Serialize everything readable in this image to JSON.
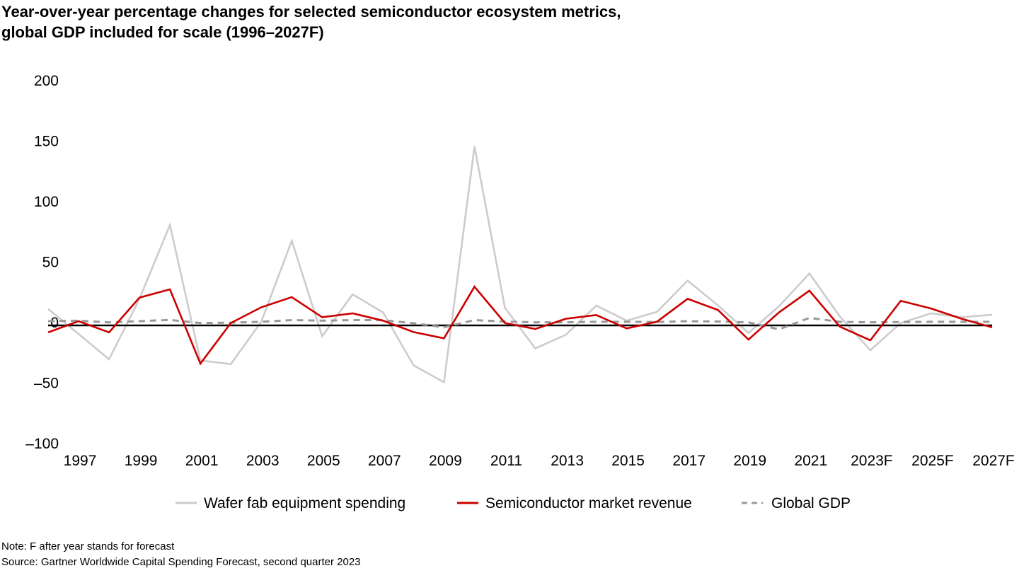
{
  "chart_data": {
    "type": "line",
    "title": "Year-over-year percentage changes for selected semiconductor ecosystem metrics, global GDP included for scale (1996–2027F)",
    "title_lines": [
      "Year-over-year percentage changes for selected semiconductor ecosystem metrics,",
      "global GDP included for scale (1996–2027F)"
    ],
    "xlabel": "",
    "ylabel": "",
    "ylim": [
      -100,
      200
    ],
    "yticks": [
      200,
      150,
      100,
      50,
      0,
      -50,
      -100
    ],
    "ytick_labels": [
      "200",
      "150",
      "100",
      "50",
      "0",
      "–50",
      "–100"
    ],
    "x": [
      "1996",
      "1997",
      "1998",
      "1999",
      "2000",
      "2001",
      "2002",
      "2003",
      "2004",
      "2005",
      "2006",
      "2007",
      "2008",
      "2009",
      "2010",
      "2011",
      "2012",
      "2013",
      "2014",
      "2015",
      "2016",
      "2017",
      "2018",
      "2019",
      "2020",
      "2021",
      "2022",
      "2023F",
      "2024F",
      "2025F",
      "2026F",
      "2027F"
    ],
    "xtick_labels": [
      "1997",
      "1999",
      "2001",
      "2003",
      "2005",
      "2007",
      "2009",
      "2011",
      "2013",
      "2015",
      "2017",
      "2019",
      "2021",
      "2023F",
      "2025F",
      "2027F"
    ],
    "grid": false,
    "zero_line": true,
    "legend_position": "bottom",
    "series": [
      {
        "name": "Wafer fab equipment spending",
        "color": "#cccccc",
        "style": "solid",
        "values": [
          13.6,
          -7,
          -28,
          22,
          83,
          -29,
          -32,
          3,
          70,
          -9,
          25.7,
          10.7,
          -33,
          -47,
          148,
          14.6,
          -19,
          -7.8,
          16.4,
          3.9,
          11.3,
          37,
          16.5,
          -6.2,
          15.8,
          43,
          7.4,
          -20.5,
          2,
          10,
          6.8,
          8.8
        ]
      },
      {
        "name": "Semiconductor market revenue",
        "color": "#cc0000",
        "style": "solid",
        "values": [
          -5.8,
          3.5,
          -5.8,
          23,
          29.8,
          -31.6,
          2,
          15,
          23.4,
          6.8,
          10,
          3.9,
          -5.5,
          -10.7,
          32,
          2,
          -2.9,
          5.5,
          8.6,
          -2.5,
          3.1,
          22,
          12.7,
          -11.7,
          10.7,
          28.7,
          -1,
          -12.3,
          20.3,
          14,
          5.5,
          -1.6
        ]
      },
      {
        "name": "Global GDP",
        "color": "#999999",
        "style": "dashed",
        "values": [
          3.5,
          3.9,
          2.5,
          3.5,
          4.5,
          2,
          2.2,
          3,
          4.4,
          3.9,
          4.4,
          4.3,
          1.8,
          -1.5,
          4.4,
          3.2,
          2.5,
          2.6,
          3,
          3,
          2.8,
          3.5,
          3.2,
          2.5,
          -3.3,
          6.2,
          3,
          2.6,
          2.8,
          3,
          3,
          3
        ]
      }
    ]
  },
  "notes": {
    "note": "Note: F after year stands for forecast",
    "source": "Source: Gartner Worldwide Capital Spending Forecast, second quarter 2023"
  }
}
